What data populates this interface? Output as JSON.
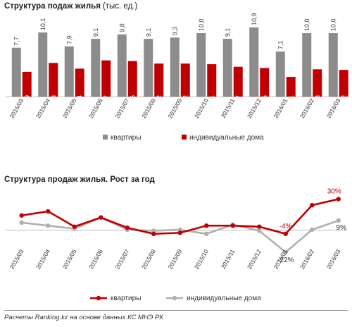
{
  "chart_data": [
    {
      "type": "bar",
      "title": "Структура  подаж жилья",
      "unit": "(тыс. ед.)",
      "categories": [
        "2015/03",
        "2015/04",
        "2015/05",
        "2015/06",
        "2015/07",
        "2015/08",
        "2015/09",
        "2015/10",
        "2015/11",
        "2015/12",
        "2016/01",
        "2016/02",
        "2016/03"
      ],
      "series": [
        {
          "name": "квартиры",
          "values": [
            7.7,
            10.1,
            7.9,
            9.1,
            9.8,
            9.1,
            9.3,
            10.0,
            9.1,
            10.9,
            7.1,
            10.0,
            10.0
          ],
          "labels": [
            "7,7",
            "10,1",
            "7,9",
            "9,1",
            "9,8",
            "9,1",
            "9,3",
            "10,0",
            "9,1",
            "10,9",
            "7,1",
            "10,0",
            "10,0"
          ]
        },
        {
          "name": "индивидуальные дома",
          "values": [
            3.9,
            5.3,
            4.4,
            5.7,
            5.6,
            5.2,
            5.2,
            5.1,
            4.7,
            4.5,
            3.1,
            4.3,
            4.2
          ],
          "labels": [
            "3,9",
            "5,3",
            "4,4",
            "5,7",
            "5,6",
            "5,2",
            "5,2",
            "5,1",
            "4,7",
            "4,5",
            "3,1",
            "4,3",
            "4,2"
          ]
        }
      ],
      "colors": {
        "квартиры": "#8c8c8c",
        "индивидуальные дома": "#c00000"
      },
      "legend": "bottom"
    },
    {
      "type": "line",
      "title": "Структура  продаж жилья. Рост за год",
      "categories": [
        "2015/03",
        "2015/04",
        "2015/05",
        "2015/06",
        "2015/07",
        "2015/08",
        "2015/09",
        "2015/10",
        "2015/11",
        "2015/12",
        "2016/01",
        "2016/02",
        "2016/03"
      ],
      "series": [
        {
          "name": "квартиры",
          "values": [
            14,
            18,
            3,
            12,
            2,
            -4,
            -3,
            4,
            4,
            3,
            -4,
            24,
            30
          ]
        },
        {
          "name": "индивидуальные дома",
          "values": [
            7,
            4,
            1,
            12,
            0,
            -1,
            0,
            -4,
            5,
            -1,
            -22,
            0,
            9
          ]
        }
      ],
      "annotations": [
        {
          "series": "квартиры",
          "category": "2016/01",
          "text": "-4%"
        },
        {
          "series": "квартиры",
          "category": "2016/03",
          "text": "30%"
        },
        {
          "series": "индивидуальные дома",
          "category": "2016/01",
          "text": "-22%"
        },
        {
          "series": "индивидуальные дома",
          "category": "2016/03",
          "text": "9%"
        }
      ],
      "colors": {
        "квартиры": "#c00000",
        "индивидуальные дома": "#b0b0b0"
      },
      "legend": "bottom"
    }
  ],
  "source": "Расчеты Ranking.kz на основе данных КС МНЭ РК"
}
